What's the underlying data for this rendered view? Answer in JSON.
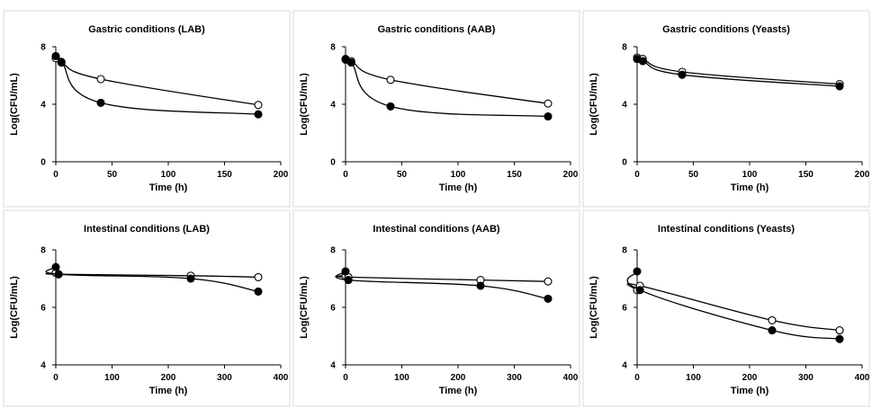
{
  "chart_data": [
    {
      "type": "scatter",
      "title": "Gastric conditions (LAB)",
      "xlabel": "Time (h)",
      "ylabel": "Log(CFU/mL)",
      "xlim": [
        0,
        200
      ],
      "ylim": [
        0,
        8
      ],
      "xticks": [
        "0",
        "50",
        "100",
        "150",
        "200"
      ],
      "yticks": [
        "0",
        "4",
        "8"
      ],
      "grid": false,
      "smooth": true,
      "series": [
        {
          "marker": "open",
          "x": [
            0,
            5,
            40,
            180
          ],
          "y": [
            7.2,
            6.9,
            5.75,
            3.95
          ]
        },
        {
          "marker": "filled",
          "x": [
            0,
            5,
            40,
            180
          ],
          "y": [
            7.35,
            6.95,
            4.1,
            3.3
          ]
        }
      ]
    },
    {
      "type": "scatter",
      "title": "Gastric conditions (AAB)",
      "xlabel": "Time (h)",
      "ylabel": "Log(CFU/mL)",
      "xlim": [
        0,
        200
      ],
      "ylim": [
        0,
        8
      ],
      "xticks": [
        "0",
        "50",
        "100",
        "150",
        "200"
      ],
      "yticks": [
        "0",
        "4",
        "8"
      ],
      "grid": false,
      "smooth": true,
      "series": [
        {
          "marker": "open",
          "x": [
            0,
            5,
            40,
            180
          ],
          "y": [
            7.1,
            7.0,
            5.7,
            4.05
          ]
        },
        {
          "marker": "filled",
          "x": [
            0,
            5,
            40,
            180
          ],
          "y": [
            7.15,
            6.9,
            3.85,
            3.15
          ]
        }
      ]
    },
    {
      "type": "scatter",
      "title": "Gastric conditions (Yeasts)",
      "xlabel": "Time (h)",
      "ylabel": "Log(CFU/mL)",
      "xlim": [
        0,
        200
      ],
      "ylim": [
        0,
        8
      ],
      "xticks": [
        "0",
        "50",
        "100",
        "150",
        "200"
      ],
      "yticks": [
        "0",
        "4",
        "8"
      ],
      "grid": false,
      "smooth": true,
      "series": [
        {
          "marker": "open",
          "x": [
            0,
            5,
            40,
            180
          ],
          "y": [
            7.25,
            7.15,
            6.25,
            5.4
          ]
        },
        {
          "marker": "filled",
          "x": [
            0,
            5,
            40,
            180
          ],
          "y": [
            7.15,
            7.0,
            6.05,
            5.25
          ]
        }
      ]
    },
    {
      "type": "scatter",
      "title": "Intestinal conditions (LAB)",
      "xlabel": "Time (h)",
      "ylabel": "Log(CFU/mL)",
      "xlim": [
        0,
        400
      ],
      "ylim": [
        4,
        8
      ],
      "xticks": [
        "0",
        "100",
        "200",
        "300",
        "400"
      ],
      "yticks": [
        "4",
        "6",
        "8"
      ],
      "grid": false,
      "smooth": true,
      "series": [
        {
          "marker": "open",
          "x": [
            0,
            5,
            240,
            360
          ],
          "y": [
            7.2,
            7.15,
            7.1,
            7.05
          ]
        },
        {
          "marker": "filled",
          "x": [
            0,
            5,
            240,
            360
          ],
          "y": [
            7.4,
            7.15,
            7.0,
            6.55
          ]
        }
      ]
    },
    {
      "type": "scatter",
      "title": "Intestinal conditions (AAB)",
      "xlabel": "Time (h)",
      "ylabel": "Log(CFU/mL)",
      "xlim": [
        0,
        400
      ],
      "ylim": [
        4,
        8
      ],
      "xticks": [
        "0",
        "100",
        "200",
        "300",
        "400"
      ],
      "yticks": [
        "4",
        "6",
        "8"
      ],
      "grid": false,
      "smooth": true,
      "series": [
        {
          "marker": "open",
          "x": [
            0,
            5,
            240,
            360
          ],
          "y": [
            7.1,
            7.05,
            6.95,
            6.9
          ]
        },
        {
          "marker": "filled",
          "x": [
            0,
            5,
            240,
            360
          ],
          "y": [
            7.25,
            6.95,
            6.75,
            6.3
          ]
        }
      ]
    },
    {
      "type": "scatter",
      "title": "Intestinal conditions (Yeasts)",
      "xlabel": "Time (h)",
      "ylabel": "Log(CFU/mL)",
      "xlim": [
        0,
        400
      ],
      "ylim": [
        4,
        8
      ],
      "xticks": [
        "0",
        "100",
        "200",
        "300",
        "400"
      ],
      "yticks": [
        "4",
        "6",
        "8"
      ],
      "grid": false,
      "smooth": true,
      "series": [
        {
          "marker": "open",
          "x": [
            0,
            5,
            240,
            360
          ],
          "y": [
            6.6,
            6.75,
            5.55,
            5.2
          ]
        },
        {
          "marker": "filled",
          "x": [
            0,
            5,
            240,
            360
          ],
          "y": [
            7.25,
            6.6,
            5.2,
            4.9
          ]
        }
      ]
    }
  ]
}
